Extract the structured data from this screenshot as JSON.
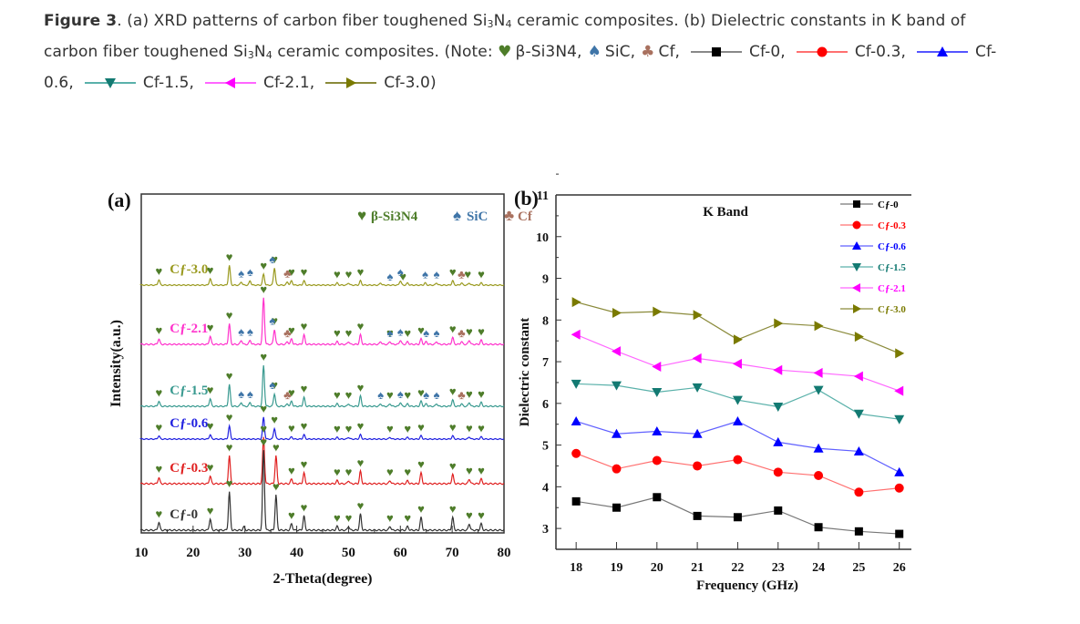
{
  "caption": {
    "figure_label": "Figure 3",
    "text_a": ". (a) XRD patterns of carbon fiber toughened Si",
    "text_a2": " ceramic composites. (b) Dielectric constants in K band of carbon fiber toughened Si",
    "text_a3": " ceramic composites. (Note: ",
    "sub3": "3",
    "sub4": "4",
    "note_items": [
      {
        "symbol": "heart",
        "color": "#4e7d2a",
        "label": "β-Si3N4,"
      },
      {
        "symbol": "spade",
        "color": "#3f75a8",
        "label": "SiC,"
      },
      {
        "symbol": "club",
        "color": "#a9715f",
        "label": "Cf,"
      },
      {
        "symbol": "square",
        "color": "#000000",
        "line": "#888888",
        "label": "Cf-0,"
      },
      {
        "symbol": "circle",
        "color": "#ff0000",
        "line": "#ff7070",
        "label": "Cf-0.3,"
      },
      {
        "symbol": "triangle-up",
        "color": "#0000ff",
        "line": "#5555ff",
        "label": "Cf-0.6,"
      },
      {
        "symbol": "triangle-down",
        "color": "#137a72",
        "line": "#5ab1aa",
        "label": "Cf-1.5,"
      },
      {
        "symbol": "triangle-left",
        "color": "#ff00ff",
        "line": "#ff66ff",
        "label": "Cf-2.1,"
      },
      {
        "symbol": "triangle-right",
        "color": "#7a7a00",
        "line": "#8a8a3a",
        "label": "Cf-3.0)"
      }
    ]
  },
  "chart_data": [
    {
      "type": "line",
      "panel_label": "(a)",
      "title": "",
      "xlabel": "2-Theta(degree)",
      "ylabel": "Intensity(a.u.)",
      "xlim": [
        10,
        80
      ],
      "xticks": [
        10,
        20,
        30,
        40,
        50,
        60,
        70,
        80
      ],
      "grid": false,
      "phase_legend": [
        {
          "symbol": "heart",
          "label": "β-Si3N4",
          "color": "#4e7d2a"
        },
        {
          "symbol": "spade",
          "label": "SiC",
          "color": "#3f75a8"
        },
        {
          "symbol": "club",
          "label": "Cf",
          "color": "#a9715f"
        }
      ],
      "legend_position": "top-right",
      "series": [
        {
          "name": "Cf-3.0",
          "color": "#9a9a20",
          "offset_rank": 5,
          "peaks": [
            [
              13.4,
              0.25
            ],
            [
              23.3,
              0.3
            ],
            [
              27.0,
              0.9
            ],
            [
              29.3,
              0.15
            ],
            [
              31.0,
              0.2
            ],
            [
              33.6,
              0.5
            ],
            [
              35.7,
              0.8
            ],
            [
              38.2,
              0.15
            ],
            [
              39.0,
              0.2
            ],
            [
              41.4,
              0.2
            ],
            [
              47.8,
              0.1
            ],
            [
              50.0,
              0.1
            ],
            [
              52.3,
              0.2
            ],
            [
              56.2,
              0.1
            ],
            [
              60.0,
              0.2
            ],
            [
              61.4,
              0.1
            ],
            [
              64.8,
              0.1
            ],
            [
              67.0,
              0.1
            ],
            [
              70.1,
              0.2
            ],
            [
              71.8,
              0.1
            ],
            [
              73.3,
              0.1
            ],
            [
              75.6,
              0.1
            ]
          ]
        },
        {
          "name": "Cf-2.1",
          "color": "#ff33cc",
          "offset_rank": 4,
          "peaks": [
            [
              13.4,
              0.2
            ],
            [
              23.3,
              0.3
            ],
            [
              27.0,
              0.75
            ],
            [
              29.3,
              0.15
            ],
            [
              31.0,
              0.15
            ],
            [
              33.6,
              1.7
            ],
            [
              35.7,
              0.55
            ],
            [
              38.2,
              0.1
            ],
            [
              39.0,
              0.2
            ],
            [
              41.4,
              0.35
            ],
            [
              47.8,
              0.1
            ],
            [
              50.0,
              0.1
            ],
            [
              52.3,
              0.35
            ],
            [
              56.2,
              0.1
            ],
            [
              58.0,
              0.1
            ],
            [
              60.0,
              0.15
            ],
            [
              61.4,
              0.1
            ],
            [
              64.0,
              0.2
            ],
            [
              65.0,
              0.1
            ],
            [
              67.0,
              0.1
            ],
            [
              70.1,
              0.25
            ],
            [
              71.8,
              0.1
            ],
            [
              73.3,
              0.15
            ],
            [
              75.6,
              0.15
            ]
          ]
        },
        {
          "name": "Cf-1.5",
          "color": "#3a9a90",
          "offset_rank": 3,
          "peaks": [
            [
              13.4,
              0.2
            ],
            [
              23.3,
              0.3
            ],
            [
              27.0,
              0.85
            ],
            [
              29.3,
              0.15
            ],
            [
              31.0,
              0.15
            ],
            [
              33.6,
              1.6
            ],
            [
              35.7,
              0.5
            ],
            [
              38.2,
              0.1
            ],
            [
              39.0,
              0.2
            ],
            [
              41.4,
              0.35
            ],
            [
              47.8,
              0.1
            ],
            [
              50.0,
              0.1
            ],
            [
              52.3,
              0.4
            ],
            [
              56.2,
              0.1
            ],
            [
              58.0,
              0.1
            ],
            [
              60.0,
              0.15
            ],
            [
              61.4,
              0.1
            ],
            [
              64.0,
              0.2
            ],
            [
              65.0,
              0.1
            ],
            [
              67.0,
              0.1
            ],
            [
              70.1,
              0.25
            ],
            [
              71.8,
              0.1
            ],
            [
              73.3,
              0.15
            ],
            [
              75.6,
              0.15
            ]
          ]
        },
        {
          "name": "Cf-0.6",
          "color": "#2020e0",
          "offset_rank": 2,
          "peaks": [
            [
              13.4,
              0.15
            ],
            [
              23.3,
              0.2
            ],
            [
              27.0,
              0.6
            ],
            [
              33.6,
              1.0
            ],
            [
              35.7,
              0.5
            ],
            [
              39.0,
              0.1
            ],
            [
              41.4,
              0.2
            ],
            [
              47.8,
              0.08
            ],
            [
              50.0,
              0.08
            ],
            [
              52.3,
              0.2
            ],
            [
              58.0,
              0.08
            ],
            [
              61.4,
              0.08
            ],
            [
              64.0,
              0.15
            ],
            [
              70.1,
              0.15
            ],
            [
              73.3,
              0.1
            ],
            [
              75.6,
              0.1
            ]
          ]
        },
        {
          "name": "Cf-0.3",
          "color": "#e02020",
          "offset_rank": 1,
          "peaks": [
            [
              13.4,
              0.2
            ],
            [
              23.3,
              0.25
            ],
            [
              27.0,
              0.9
            ],
            [
              33.6,
              1.5
            ],
            [
              36.0,
              0.9
            ],
            [
              39.0,
              0.15
            ],
            [
              41.4,
              0.35
            ],
            [
              47.8,
              0.1
            ],
            [
              50.0,
              0.1
            ],
            [
              52.3,
              0.4
            ],
            [
              58.0,
              0.1
            ],
            [
              61.4,
              0.1
            ],
            [
              64.0,
              0.35
            ],
            [
              70.1,
              0.3
            ],
            [
              73.3,
              0.15
            ],
            [
              75.6,
              0.15
            ]
          ]
        },
        {
          "name": "Cf-0",
          "color": "#333333",
          "offset_rank": 0,
          "peaks": [
            [
              13.4,
              0.25
            ],
            [
              23.3,
              0.35
            ],
            [
              27.0,
              1.2
            ],
            [
              29.8,
              0.1
            ],
            [
              33.6,
              2.5
            ],
            [
              36.0,
              1.1
            ],
            [
              39.0,
              0.2
            ],
            [
              41.4,
              0.45
            ],
            [
              47.8,
              0.12
            ],
            [
              50.0,
              0.12
            ],
            [
              52.3,
              0.5
            ],
            [
              58.0,
              0.12
            ],
            [
              61.4,
              0.12
            ],
            [
              64.0,
              0.4
            ],
            [
              70.1,
              0.4
            ],
            [
              73.3,
              0.2
            ],
            [
              75.6,
              0.2
            ]
          ]
        }
      ],
      "markers": {
        "Cf-3.0": {
          "heart": [
            13.4,
            23.3,
            27.0,
            33.6,
            35.7,
            39.0,
            41.4,
            47.8,
            50.0,
            52.3,
            60.5,
            70.1,
            73.0,
            75.6
          ],
          "spade": [
            29.3,
            31.0,
            35.3,
            58.0,
            60.0,
            64.8,
            67.0
          ],
          "club": [
            38.2,
            71.8
          ]
        },
        "Cf-2.1": {
          "heart": [
            13.4,
            23.3,
            27.0,
            33.6,
            35.7,
            39.0,
            41.4,
            47.8,
            50.0,
            52.3,
            58.0,
            61.4,
            64.0,
            70.1,
            73.3,
            75.6
          ],
          "spade": [
            29.3,
            31.0,
            35.3,
            58.0,
            60.0,
            65.0,
            67.0
          ],
          "club": [
            38.2,
            71.8
          ]
        },
        "Cf-1.5": {
          "heart": [
            13.4,
            23.3,
            27.0,
            33.6,
            35.7,
            39.0,
            41.4,
            47.8,
            50.0,
            52.3,
            58.0,
            61.4,
            64.0,
            70.1,
            73.3,
            75.6
          ],
          "spade": [
            29.3,
            31.0,
            35.3,
            56.2,
            60.0,
            65.0,
            67.0
          ],
          "club": [
            38.2,
            71.8
          ]
        },
        "Cf-0.6": {
          "heart": [
            13.4,
            23.3,
            27.0,
            33.6,
            35.7,
            39.0,
            41.4,
            47.8,
            50.0,
            52.3,
            58.0,
            61.4,
            64.0,
            70.1,
            73.3,
            75.6
          ],
          "spade": [],
          "club": []
        },
        "Cf-0.3": {
          "heart": [
            13.4,
            23.3,
            27.0,
            33.6,
            36.0,
            39.0,
            41.4,
            47.8,
            50.0,
            52.3,
            58.0,
            61.4,
            64.0,
            70.1,
            73.3,
            75.6
          ],
          "spade": [],
          "club": []
        },
        "Cf-0": {
          "heart": [
            13.4,
            23.3,
            27.0,
            33.6,
            36.0,
            39.0,
            41.4,
            47.8,
            50.0,
            52.3,
            58.0,
            61.4,
            64.0,
            70.1,
            73.3,
            75.6
          ],
          "spade": [],
          "club": []
        }
      }
    },
    {
      "type": "line",
      "panel_label": "(b)",
      "title": "K Band",
      "xlabel": "Frequency (GHz)",
      "ylabel": "Dielectric constant",
      "x": [
        18,
        19,
        20,
        21,
        22,
        23,
        24,
        25,
        26
      ],
      "xlim": [
        17.5,
        26.3
      ],
      "ylim": [
        2.5,
        11
      ],
      "yticks": [
        3,
        4,
        5,
        6,
        7,
        8,
        9,
        10,
        11
      ],
      "grid": false,
      "legend_position": "top-right",
      "series": [
        {
          "name": "Cf-0",
          "color": "#000000",
          "line": "#777777",
          "marker": "square",
          "values": [
            3.65,
            3.5,
            3.75,
            3.3,
            3.27,
            3.43,
            3.03,
            2.93,
            2.87
          ]
        },
        {
          "name": "Cf-0.3",
          "color": "#ff0000",
          "line": "#ff7070",
          "marker": "circle",
          "values": [
            4.8,
            4.43,
            4.63,
            4.5,
            4.65,
            4.35,
            4.27,
            3.87,
            3.97
          ]
        },
        {
          "name": "Cf-0.6",
          "color": "#0000ff",
          "line": "#6060ff",
          "marker": "triangle-up",
          "values": [
            5.57,
            5.27,
            5.33,
            5.27,
            5.57,
            5.07,
            4.92,
            4.85,
            4.35
          ]
        },
        {
          "name": "Cf-1.5",
          "color": "#137a72",
          "line": "#5ab1aa",
          "marker": "triangle-down",
          "values": [
            6.47,
            6.43,
            6.27,
            6.38,
            6.08,
            5.92,
            6.32,
            5.75,
            5.62
          ]
        },
        {
          "name": "Cf-2.1",
          "color": "#ff00ff",
          "line": "#ff66ff",
          "marker": "triangle-left",
          "values": [
            7.65,
            7.25,
            6.88,
            7.08,
            6.95,
            6.8,
            6.73,
            6.65,
            6.3
          ]
        },
        {
          "name": "Cf-3.0",
          "color": "#7a7a00",
          "line": "#8a8a3a",
          "marker": "triangle-right",
          "values": [
            8.43,
            8.17,
            8.2,
            8.12,
            7.53,
            7.92,
            7.86,
            7.6,
            7.2
          ]
        }
      ]
    }
  ]
}
